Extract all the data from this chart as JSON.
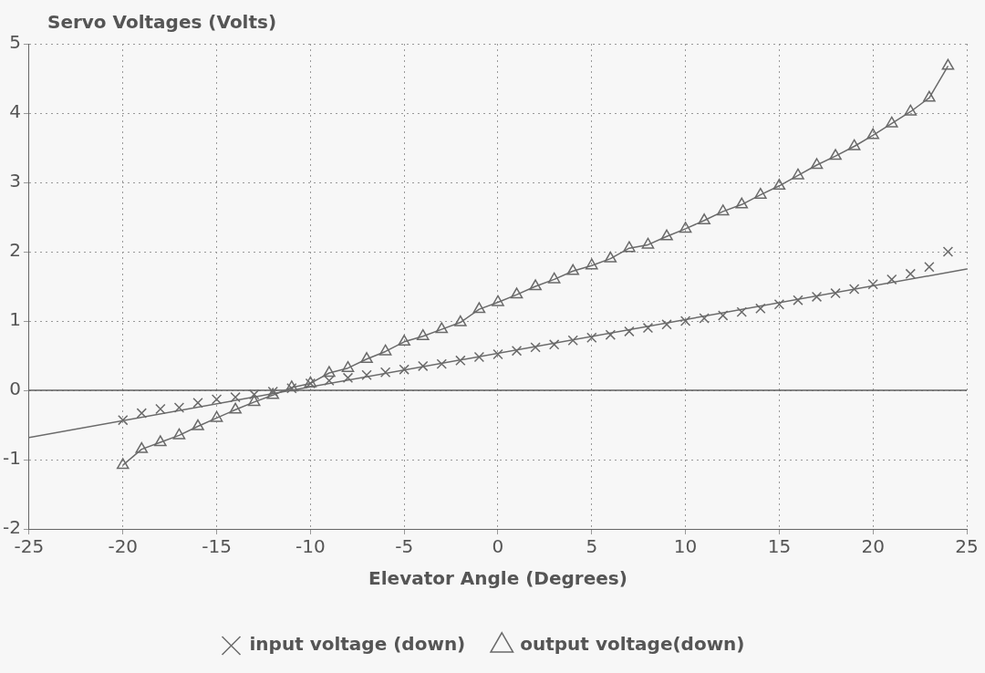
{
  "chart_data": {
    "type": "line",
    "ylabel": "Servo Voltages (Volts)",
    "xlabel": "Elevator Angle (Degrees)",
    "xlim": [
      -25,
      25
    ],
    "xticks": [
      -25,
      -20,
      -15,
      -10,
      -5,
      0,
      5,
      10,
      15,
      20,
      25
    ],
    "ylim": [
      -2,
      5
    ],
    "yticks": [
      -2,
      -1,
      0,
      1,
      2,
      3,
      4,
      5
    ],
    "grid": true,
    "legend": "bottom",
    "line_style": "solid",
    "ref_lines": [
      {
        "axis": "y",
        "value": 0,
        "color": "#606060"
      }
    ],
    "series": [
      {
        "name": "input voltage (down)",
        "type": "scatter",
        "marker": "cross",
        "color": "#6a6a6a",
        "x": [
          -20,
          -19,
          -18,
          -17,
          -16,
          -15,
          -14,
          -13,
          -12,
          -11,
          -10,
          -9,
          -8,
          -7,
          -6,
          -5,
          -4,
          -3,
          -2,
          -1,
          0,
          1,
          2,
          3,
          4,
          5,
          6,
          7,
          8,
          9,
          10,
          11,
          12,
          13,
          14,
          15,
          16,
          17,
          18,
          19,
          20,
          21,
          22,
          23,
          24
        ],
        "values": [
          -0.43,
          -0.33,
          -0.27,
          -0.25,
          -0.18,
          -0.13,
          -0.1,
          -0.06,
          -0.02,
          0.03,
          0.1,
          0.14,
          0.18,
          0.22,
          0.26,
          0.3,
          0.35,
          0.38,
          0.43,
          0.48,
          0.52,
          0.57,
          0.62,
          0.66,
          0.72,
          0.76,
          0.8,
          0.85,
          0.9,
          0.95,
          1.0,
          1.04,
          1.08,
          1.13,
          1.18,
          1.24,
          1.3,
          1.35,
          1.4,
          1.46,
          1.53,
          1.6,
          1.68,
          1.78,
          2.0
        ]
      },
      {
        "type": "line",
        "marker": "none",
        "color": "#6a6a6a",
        "x": [
          -25,
          25
        ],
        "values": [
          -0.68,
          1.75
        ]
      },
      {
        "name": "output voltage(down)",
        "type": "line",
        "marker": "triangle",
        "color": "#6a6a6a",
        "x": [
          -20,
          -19,
          -18,
          -17,
          -16,
          -15,
          -14,
          -13,
          -12,
          -11,
          -10,
          -9,
          -8,
          -7,
          -6,
          -5,
          -4,
          -3,
          -2,
          -1,
          0,
          1,
          2,
          3,
          4,
          5,
          6,
          7,
          8,
          9,
          10,
          11,
          12,
          13,
          14,
          15,
          16,
          17,
          18,
          19,
          20,
          21,
          22,
          23,
          24
        ],
        "values": [
          -1.08,
          -0.85,
          -0.75,
          -0.65,
          -0.52,
          -0.4,
          -0.28,
          -0.17,
          -0.07,
          0.04,
          0.1,
          0.25,
          0.32,
          0.45,
          0.56,
          0.7,
          0.78,
          0.88,
          0.98,
          1.17,
          1.27,
          1.38,
          1.5,
          1.6,
          1.72,
          1.8,
          1.9,
          2.05,
          2.1,
          2.22,
          2.33,
          2.45,
          2.58,
          2.68,
          2.82,
          2.95,
          3.1,
          3.25,
          3.38,
          3.52,
          3.68,
          3.85,
          4.02,
          4.22,
          4.68
        ]
      }
    ]
  }
}
